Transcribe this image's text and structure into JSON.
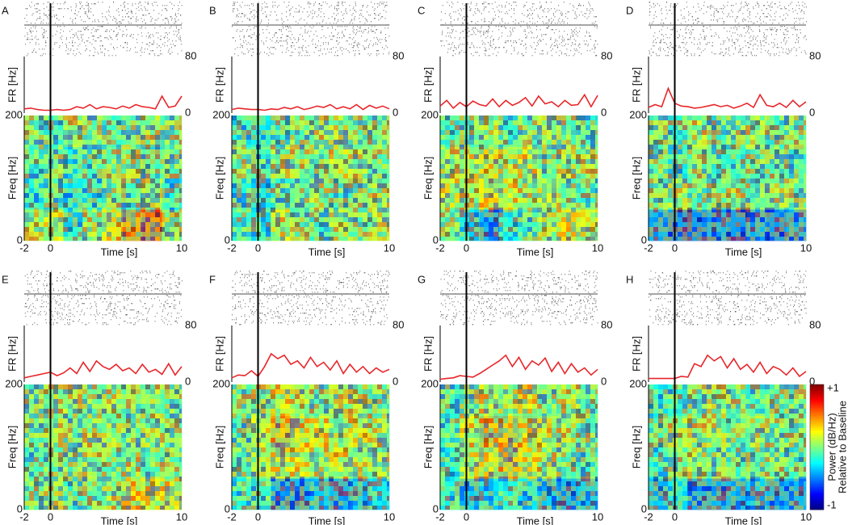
{
  "chart_data": [
    {
      "type": "raster_fr_spectrogram",
      "panel_label": "A",
      "x_label": "Time [s]",
      "fr_label": "FR [Hz]",
      "freq_label": "Freq [Hz]",
      "xlim": [
        -2,
        10
      ],
      "xticks": [
        -2,
        0,
        10
      ],
      "fr_ylim": [
        0,
        80
      ],
      "fr_yticks": [
        0,
        80
      ],
      "ylim": [
        0,
        200
      ],
      "yticks": [
        0,
        200
      ],
      "color": "#e8262a",
      "fr": {
        "x": [
          -2,
          -1.5,
          -1,
          -0.5,
          0,
          0.5,
          1,
          1.5,
          2,
          2.5,
          3,
          3.5,
          4,
          4.5,
          5,
          5.5,
          6,
          6.5,
          7,
          7.5,
          8,
          8.5,
          9,
          9.5,
          10
        ],
        "values": [
          6,
          7,
          5,
          4,
          4,
          5,
          4,
          5,
          9,
          7,
          12,
          6,
          9,
          8,
          6,
          10,
          7,
          12,
          9,
          8,
          6,
          24,
          8,
          10,
          24
        ]
      },
      "power": [
        [
          0.1,
          0.2,
          -0.2,
          0.1,
          0.3,
          0.5,
          0.6,
          0.1
        ],
        [
          -0.2,
          -0.1,
          -0.3,
          -0.2,
          0,
          -0.1,
          0.1,
          -0.2
        ],
        [
          -0.1,
          0,
          -0.2,
          -0.1,
          0,
          0.1,
          -0.1,
          0
        ],
        [
          0,
          -0.1,
          0.1,
          0,
          -0.1,
          0,
          0.1,
          0
        ]
      ]
    },
    {
      "type": "raster_fr_spectrogram",
      "panel_label": "B",
      "x_label": "Time [s]",
      "fr_label": "FR [Hz]",
      "freq_label": "Freq [Hz]",
      "xlim": [
        -2,
        10
      ],
      "xticks": [
        -2,
        0,
        10
      ],
      "fr_ylim": [
        0,
        80
      ],
      "fr_yticks": [
        0,
        80
      ],
      "ylim": [
        0,
        200
      ],
      "yticks": [
        0,
        200
      ],
      "color": "#e8262a",
      "fr": {
        "x": [
          -2,
          -1.5,
          -1,
          -0.5,
          0,
          0.5,
          1,
          1.5,
          2,
          2.5,
          3,
          3.5,
          4,
          4.5,
          5,
          5.5,
          6,
          6.5,
          7,
          7.5,
          8,
          8.5,
          9,
          9.5,
          10
        ],
        "values": [
          5,
          7,
          6,
          5,
          5,
          4,
          6,
          5,
          8,
          6,
          9,
          5,
          7,
          10,
          8,
          12,
          6,
          9,
          6,
          12,
          5,
          11,
          7,
          10,
          6
        ]
      },
      "power": [
        [
          -0.1,
          -0.2,
          0.2,
          0,
          -0.1,
          0.1,
          0,
          0.1
        ],
        [
          -0.2,
          -0.3,
          -0.1,
          0,
          0.1,
          -0.1,
          0,
          0.1
        ],
        [
          0,
          -0.1,
          0.1,
          0.1,
          0,
          0.2,
          0.1,
          0
        ],
        [
          -0.2,
          -0.3,
          -0.1,
          0,
          0.1,
          0.1,
          0,
          0
        ]
      ]
    },
    {
      "type": "raster_fr_spectrogram",
      "panel_label": "C",
      "x_label": "Time [s]",
      "fr_label": "FR [Hz]",
      "freq_label": "Freq [Hz]",
      "xlim": [
        -2,
        10
      ],
      "xticks": [
        -2,
        0,
        10
      ],
      "fr_ylim": [
        0,
        80
      ],
      "fr_yticks": [
        0,
        80
      ],
      "ylim": [
        0,
        200
      ],
      "yticks": [
        0,
        200
      ],
      "color": "#e8262a",
      "fr": {
        "x": [
          -2,
          -1.5,
          -1,
          -0.5,
          0,
          0.5,
          1,
          1.5,
          2,
          2.5,
          3,
          3.5,
          4,
          4.5,
          5,
          5.5,
          6,
          6.5,
          7,
          7.5,
          8,
          8.5,
          9,
          9.5,
          10
        ],
        "values": [
          10,
          18,
          7,
          15,
          9,
          17,
          12,
          10,
          20,
          9,
          18,
          11,
          15,
          22,
          10,
          24,
          13,
          16,
          9,
          18,
          11,
          12,
          26,
          9,
          25
        ]
      },
      "power": [
        [
          0,
          -0.3,
          -0.5,
          -0.2,
          -0.1,
          0.1,
          0.3,
          0.2
        ],
        [
          0.2,
          0.1,
          0.3,
          0.2,
          0.1,
          0.2,
          0,
          -0.1
        ],
        [
          0.1,
          0.2,
          0.3,
          0.1,
          0.2,
          0,
          0.1,
          0.1
        ],
        [
          -0.1,
          0,
          0.1,
          -0.1,
          0,
          0.1,
          0,
          -0.1
        ]
      ]
    },
    {
      "type": "raster_fr_spectrogram",
      "panel_label": "D",
      "x_label": "Time [s]",
      "fr_label": "FR [Hz]",
      "freq_label": "Freq [Hz]",
      "xlim": [
        -2,
        10
      ],
      "xticks": [
        -2,
        0,
        10
      ],
      "fr_ylim": [
        0,
        80
      ],
      "fr_yticks": [
        0,
        80
      ],
      "ylim": [
        0,
        200
      ],
      "yticks": [
        0,
        200
      ],
      "color": "#e8262a",
      "fr": {
        "x": [
          -2,
          -1.5,
          -1,
          -0.5,
          0,
          0.5,
          1,
          1.5,
          2,
          2.5,
          3,
          3.5,
          4,
          4.5,
          5,
          5.5,
          6,
          6.5,
          7,
          7.5,
          8,
          8.5,
          9,
          9.5,
          10
        ],
        "values": [
          8,
          12,
          9,
          35,
          14,
          10,
          9,
          7,
          8,
          10,
          12,
          9,
          11,
          7,
          10,
          14,
          8,
          26,
          11,
          9,
          14,
          8,
          18,
          9,
          16
        ]
      },
      "power": [
        [
          -0.5,
          -0.6,
          -0.6,
          -0.5,
          -0.6,
          -0.5,
          -0.6,
          -0.5
        ],
        [
          0,
          0.1,
          -0.1,
          0,
          0.1,
          0,
          0.1,
          0
        ],
        [
          0,
          -0.2,
          0,
          -0.1,
          -0.1,
          0,
          0,
          -0.1
        ],
        [
          0,
          -0.1,
          0.1,
          -0.1,
          0,
          0.1,
          -0.1,
          0
        ]
      ]
    },
    {
      "type": "raster_fr_spectrogram",
      "panel_label": "E",
      "x_label": "Time [s]",
      "fr_label": "FR [Hz]",
      "freq_label": "Freq [Hz]",
      "xlim": [
        -2,
        10
      ],
      "xticks": [
        -2,
        0,
        10
      ],
      "fr_ylim": [
        0,
        80
      ],
      "fr_yticks": [
        0,
        80
      ],
      "ylim": [
        0,
        200
      ],
      "yticks": [
        0,
        200
      ],
      "color": "#e8262a",
      "fr": {
        "x": [
          -2,
          -1.5,
          -1,
          -0.5,
          0,
          0.5,
          1,
          1.5,
          2,
          2.5,
          3,
          3.5,
          4,
          4.5,
          5,
          5.5,
          6,
          6.5,
          7,
          7.5,
          8,
          8.5,
          9,
          9.5,
          10
        ],
        "values": [
          6,
          8,
          10,
          12,
          14,
          9,
          13,
          20,
          12,
          28,
          15,
          30,
          22,
          18,
          25,
          16,
          20,
          12,
          25,
          14,
          18,
          11,
          26,
          10,
          22
        ]
      },
      "power": [
        [
          0,
          0.1,
          -0.1,
          0,
          0.1,
          0.3,
          0.2,
          0.3
        ],
        [
          -0.1,
          0,
          0,
          0.1,
          0,
          0.1,
          0,
          0
        ],
        [
          0,
          0.1,
          0,
          0.1,
          0.1,
          0,
          0.1,
          0
        ],
        [
          0,
          0.1,
          0.1,
          0,
          0.1,
          0,
          0.1,
          0
        ]
      ]
    },
    {
      "type": "raster_fr_spectrogram",
      "panel_label": "F",
      "x_label": "Time [s]",
      "fr_label": "FR [Hz]",
      "freq_label": "Freq [Hz]",
      "xlim": [
        -2,
        10
      ],
      "xticks": [
        -2,
        0,
        10
      ],
      "fr_ylim": [
        0,
        80
      ],
      "fr_yticks": [
        0,
        80
      ],
      "ylim": [
        0,
        200
      ],
      "yticks": [
        0,
        200
      ],
      "color": "#e8262a",
      "fr": {
        "x": [
          -2,
          -1.5,
          -1,
          -0.5,
          0,
          0.5,
          1,
          1.5,
          2,
          2.5,
          3,
          3.5,
          4,
          4.5,
          5,
          5.5,
          6,
          6.5,
          7,
          7.5,
          8,
          8.5,
          9,
          9.5,
          10
        ],
        "values": [
          6,
          10,
          9,
          16,
          8,
          22,
          40,
          33,
          38,
          25,
          30,
          20,
          35,
          22,
          28,
          17,
          30,
          12,
          25,
          14,
          22,
          12,
          20,
          14,
          18
        ]
      },
      "power": [
        [
          -0.2,
          -0.1,
          -0.5,
          -0.5,
          -0.4,
          -0.5,
          -0.4,
          -0.3
        ],
        [
          0,
          0.1,
          0.3,
          0.2,
          0.1,
          0.2,
          0.1,
          0.1
        ],
        [
          -0.1,
          0.2,
          0.4,
          0.3,
          0.2,
          0.1,
          0.2,
          0.1
        ],
        [
          0,
          0.1,
          0.2,
          0.1,
          0,
          0.1,
          0.1,
          0
        ]
      ]
    },
    {
      "type": "raster_fr_spectrogram",
      "panel_label": "G",
      "x_label": "Time [s]",
      "fr_label": "FR [Hz]",
      "freq_label": "Freq [Hz]",
      "xlim": [
        -2,
        10
      ],
      "xticks": [
        -2,
        0,
        10
      ],
      "fr_ylim": [
        0,
        80
      ],
      "fr_yticks": [
        0,
        80
      ],
      "ylim": [
        0,
        200
      ],
      "yticks": [
        0,
        200
      ],
      "color": "#e8262a",
      "fr": {
        "x": [
          -2,
          -1.5,
          -1,
          -0.5,
          0,
          0.5,
          1,
          1.5,
          2,
          2.5,
          3,
          3.5,
          4,
          4.5,
          5,
          5.5,
          6,
          6.5,
          7,
          7.5,
          8,
          8.5,
          9,
          9.5,
          10
        ],
        "values": [
          4,
          5,
          6,
          9,
          8,
          7,
          12,
          18,
          24,
          30,
          38,
          22,
          35,
          18,
          30,
          24,
          34,
          15,
          28,
          12,
          26,
          14,
          20,
          10,
          18
        ]
      },
      "power": [
        [
          -0.2,
          -0.4,
          -0.3,
          -0.2,
          -0.3,
          -0.4,
          -0.5,
          -0.4
        ],
        [
          -0.2,
          0.2,
          0.3,
          0.4,
          0.3,
          0.1,
          0,
          -0.1
        ],
        [
          -0.1,
          0.2,
          0.4,
          0.4,
          0.3,
          0.2,
          0.1,
          0
        ],
        [
          -0.1,
          0,
          0.2,
          0.1,
          0.2,
          0,
          0.1,
          0
        ]
      ]
    },
    {
      "type": "raster_fr_spectrogram",
      "panel_label": "H",
      "x_label": "Time [s]",
      "fr_label": "FR [Hz]",
      "freq_label": "Freq [Hz]",
      "xlim": [
        -2,
        10
      ],
      "xticks": [
        -2,
        0,
        10
      ],
      "fr_ylim": [
        0,
        80
      ],
      "fr_yticks": [
        0,
        80
      ],
      "ylim": [
        0,
        200
      ],
      "yticks": [
        0,
        200
      ],
      "color": "#e8262a",
      "fr": {
        "x": [
          -2,
          -1.5,
          -1,
          -0.5,
          0,
          0.5,
          1,
          1.5,
          2,
          2.5,
          3,
          3.5,
          4,
          4.5,
          5,
          5.5,
          6,
          6.5,
          7,
          7.5,
          8,
          8.5,
          9,
          9.5,
          10
        ],
        "values": [
          5,
          5,
          5,
          5,
          5,
          8,
          7,
          26,
          22,
          38,
          30,
          36,
          20,
          33,
          18,
          25,
          14,
          28,
          12,
          22,
          18,
          10,
          20,
          8,
          15
        ]
      },
      "power": [
        [
          -0.4,
          -0.3,
          -0.5,
          -0.5,
          -0.5,
          -0.4,
          -0.5,
          -0.5
        ],
        [
          -0.2,
          0,
          0.1,
          0,
          -0.1,
          0,
          0,
          -0.1
        ],
        [
          -0.1,
          0.1,
          0.1,
          0.1,
          0,
          0.1,
          0,
          0
        ],
        [
          -0.2,
          -0.1,
          0,
          0.1,
          0,
          -0.1,
          0,
          0
        ]
      ],
      "colorbar": {
        "lim": [
          -1,
          1
        ],
        "ticks": [
          {
            "value": 1,
            "label": "+1"
          },
          -1
        ],
        "label": [
          "Power (dB/Hz)",
          "Relative to Baseline"
        ]
      }
    }
  ]
}
